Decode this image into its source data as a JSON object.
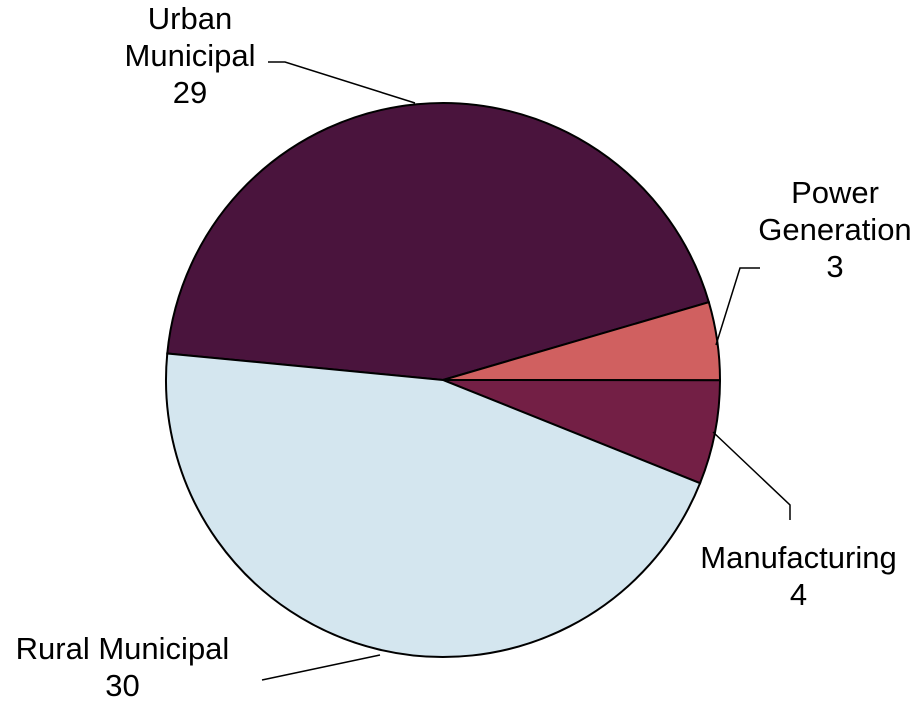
{
  "chart_data": {
    "type": "pie",
    "categories": [
      "Urban Municipal",
      "Power Generation",
      "Manufacturing",
      "Rural Municipal"
    ],
    "values": [
      29,
      3,
      4,
      30
    ],
    "colors": [
      "#4a143d",
      "#d06060",
      "#731f45",
      "#d4e6ef"
    ]
  }
}
